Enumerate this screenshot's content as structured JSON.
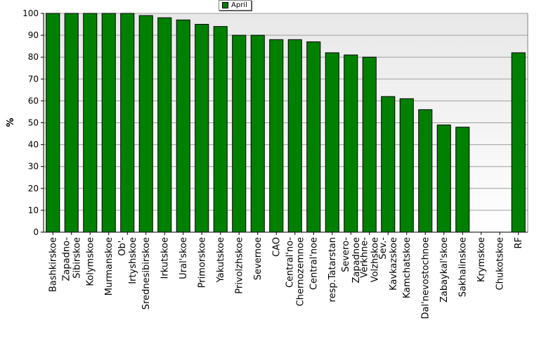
{
  "chart_data": {
    "type": "bar",
    "title": "",
    "xlabel": "",
    "ylabel": "%",
    "ylim": [
      0,
      100
    ],
    "yticks": [
      0,
      10,
      20,
      30,
      40,
      50,
      60,
      70,
      80,
      90,
      100
    ],
    "grid": true,
    "legend_position": "top-center",
    "bar_color": "#008000",
    "categories": [
      "Bashkirskoe",
      "Zapadno-Sibirskoe",
      "Kolymskoe",
      "Murmanskoe",
      "Ob'-Irtyshskoe",
      "Srednesibirskoe",
      "Irkutskoe",
      "Ural'skoe",
      "Primorskoe",
      "Yakutskoe",
      "Privolzhskoe",
      "Severnoe",
      "CAO",
      "Central'no-Chernozemnoe",
      "Central'noe",
      "resp.Tatarstan",
      "Severo-Zapadnoe",
      "Verkhne-Volzhskoe",
      "Sev.-Kavkazskoe",
      "Kamchatskoe",
      "Dal'nevostochnoe",
      "Zabaykal'skoe",
      "Sakhalinskoe",
      "Krymskoe",
      "Chukotskoe",
      "RF"
    ],
    "series": [
      {
        "name": "April",
        "values": [
          100,
          100,
          100,
          100,
          100,
          99,
          98,
          97,
          95,
          94,
          90,
          90,
          88,
          88,
          87,
          82,
          81,
          80,
          62,
          61,
          56,
          49,
          48,
          0,
          0,
          82
        ]
      }
    ]
  }
}
